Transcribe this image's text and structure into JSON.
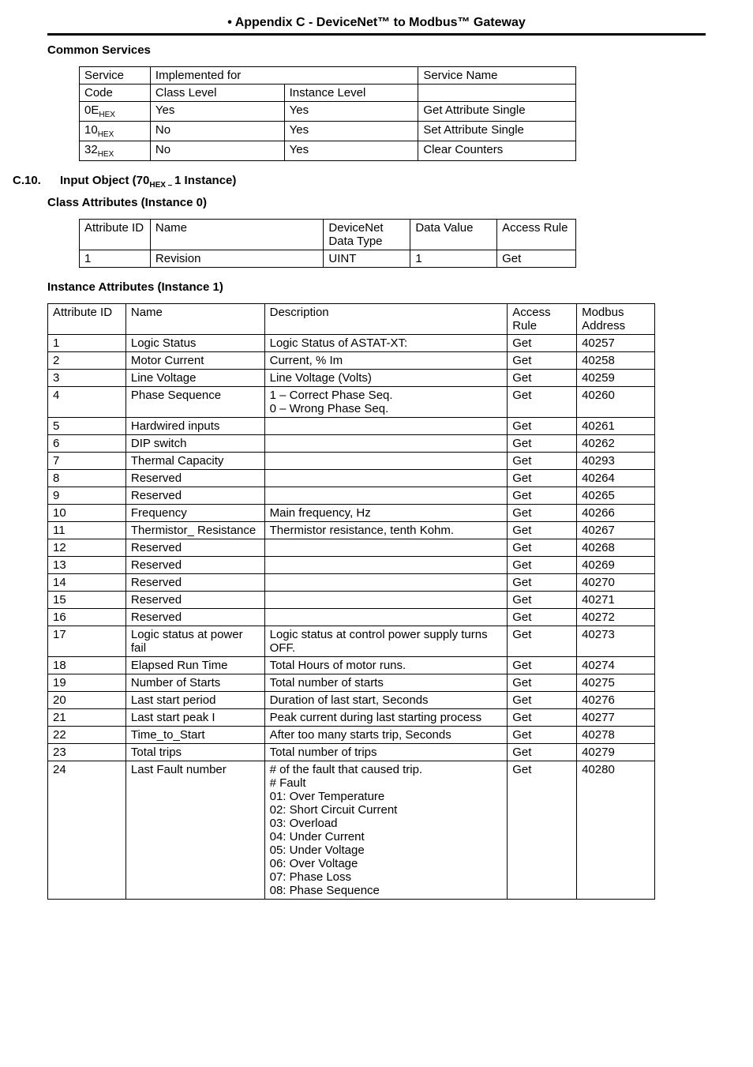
{
  "header": {
    "title": "• Appendix C - DeviceNet™ to Modbus™ Gateway"
  },
  "sections": {
    "common_services": {
      "heading": "Common Services",
      "table": {
        "head1": [
          "Service",
          "Implemented for",
          "Service Name"
        ],
        "head2": [
          "Code",
          "Class Level",
          "Instance Level"
        ],
        "rows": [
          {
            "code_pre": "0E",
            "code_sub": "HEX",
            "class": "Yes",
            "instance": "Yes",
            "name": "Get Attribute Single"
          },
          {
            "code_pre": "10",
            "code_sub": "HEX",
            "class": "No",
            "instance": "Yes",
            "name": "Set Attribute Single"
          },
          {
            "code_pre": "32",
            "code_sub": "HEX",
            "class": "No",
            "instance": "Yes",
            "name": "Clear Counters"
          }
        ]
      }
    },
    "c10": {
      "num": "C.10.",
      "text_pre": "Input Object (70",
      "text_sub": "HEX – ",
      "text_post": "1 Instance)",
      "class_attr_heading": "Class Attributes (Instance 0)",
      "class_attr_table": {
        "head": [
          "Attribute ID",
          "Name",
          "DeviceNet Data Type",
          "Data Value",
          "Access Rule"
        ],
        "row": {
          "id": "1",
          "name": "Revision",
          "dtype": "UINT",
          "val": "1",
          "rule": "Get"
        }
      },
      "inst_attr_heading": "Instance Attributes (Instance 1)",
      "inst_table": {
        "head": [
          "Attribute ID",
          "Name",
          "Description",
          "Access Rule",
          "Modbus Address"
        ],
        "rows": [
          {
            "id": "1",
            "name": "Logic Status",
            "desc": "Logic Status of ASTAT-XT:",
            "rule": "Get",
            "addr": "40257"
          },
          {
            "id": "2",
            "name": "Motor Current",
            "desc": "Current, % Im",
            "rule": "Get",
            "addr": "40258"
          },
          {
            "id": "3",
            "name": "Line Voltage",
            "desc": "Line Voltage (Volts)",
            "rule": "Get",
            "addr": "40259"
          },
          {
            "id": "4",
            "name": "Phase Sequence",
            "desc": "1 – Correct Phase Seq.\n0 – Wrong Phase Seq.",
            "rule": "Get",
            "addr": "40260"
          },
          {
            "id": "5",
            "name": "Hardwired inputs",
            "desc": "",
            "rule": "Get",
            "addr": "40261"
          },
          {
            "id": "6",
            "name": "DIP switch",
            "desc": "",
            "rule": "Get",
            "addr": "40262"
          },
          {
            "id": "7",
            "name": "Thermal Capacity",
            "desc": "",
            "rule": "Get",
            "addr": "40293"
          },
          {
            "id": "8",
            "name": "Reserved",
            "desc": "",
            "rule": "Get",
            "addr": "40264"
          },
          {
            "id": "9",
            "name": "Reserved",
            "desc": "",
            "rule": "Get",
            "addr": "40265"
          },
          {
            "id": "10",
            "name": "Frequency",
            "desc": "Main frequency, Hz",
            "rule": "Get",
            "addr": "40266"
          },
          {
            "id": "11",
            "name": "Thermistor_ Resistance",
            "desc": "Thermistor resistance, tenth Kohm.",
            "rule": "Get",
            "addr": "40267"
          },
          {
            "id": "12",
            "name": "Reserved",
            "desc": "",
            "rule": "Get",
            "addr": "40268"
          },
          {
            "id": "13",
            "name": "Reserved",
            "desc": "",
            "rule": "Get",
            "addr": "40269"
          },
          {
            "id": "14",
            "name": "Reserved",
            "desc": "",
            "rule": "Get",
            "addr": "40270"
          },
          {
            "id": "15",
            "name": "Reserved",
            "desc": "",
            "rule": "Get",
            "addr": "40271"
          },
          {
            "id": "16",
            "name": "Reserved",
            "desc": "",
            "rule": "Get",
            "addr": "40272"
          },
          {
            "id": "17",
            "name": "Logic status at power fail",
            "desc": "Logic status at control power supply turns OFF.",
            "rule": "Get",
            "addr": "40273"
          },
          {
            "id": "18",
            "name": "Elapsed Run Time",
            "desc": "Total Hours of motor runs.",
            "rule": "Get",
            "addr": "40274"
          },
          {
            "id": "19",
            "name": "Number of Starts",
            "desc": "Total number of starts",
            "rule": "Get",
            "addr": "40275"
          },
          {
            "id": "20",
            "name": "Last start period",
            "desc": "Duration of last start, Seconds",
            "rule": "Get",
            "addr": "40276"
          },
          {
            "id": "21",
            "name": "Last start peak I",
            "desc": "Peak current during last starting process",
            "rule": "Get",
            "addr": "40277"
          },
          {
            "id": "22",
            "name": "Time_to_Start",
            "desc": "After too many starts trip, Seconds",
            "rule": "Get",
            "addr": "40278"
          },
          {
            "id": "23",
            "name": "Total trips",
            "desc": "Total number of trips",
            "rule": "Get",
            "addr": "40279"
          },
          {
            "id": "24",
            "name": "Last Fault number",
            "desc": "# of the fault that caused trip.\n# Fault\n01: Over Temperature\n02: Short Circuit Current\n03: Overload\n04: Under Current\n05: Under Voltage\n06: Over Voltage\n07: Phase Loss\n08: Phase Sequence",
            "rule": "Get",
            "addr": "40280"
          }
        ]
      }
    }
  }
}
